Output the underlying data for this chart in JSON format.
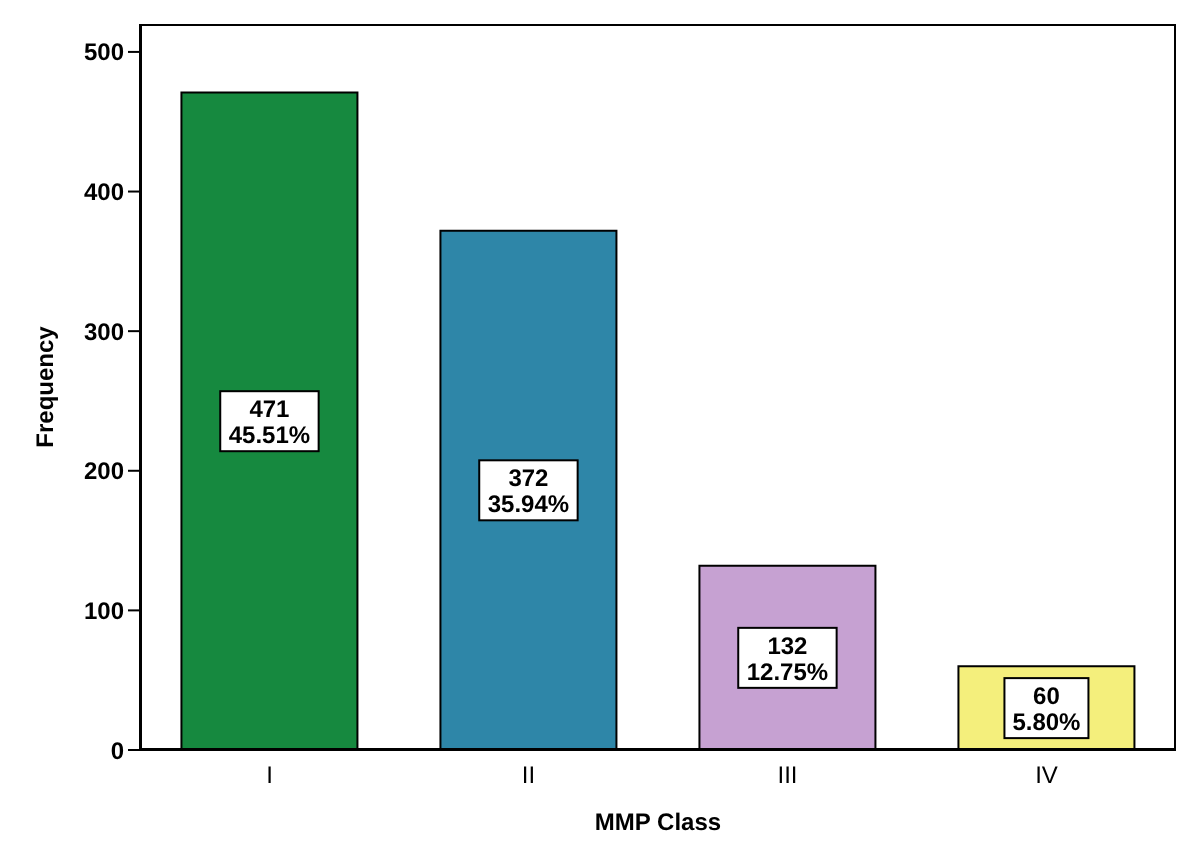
{
  "chart_data": {
    "type": "bar",
    "xlabel": "MMP Class",
    "ylabel": "Frequency",
    "categories": [
      "I",
      "II",
      "III",
      "IV"
    ],
    "values": [
      471,
      372,
      132,
      60
    ],
    "colors": [
      "#16893f",
      "#2e86a8",
      "#c6a1d2",
      "#f4ef7c"
    ],
    "value_labels": [
      "471\n45.51%",
      "372\n35.94%",
      "132\n12.75%",
      "60\n5.80%"
    ],
    "ylim": [
      0,
      520
    ],
    "yticks": [
      0,
      100,
      200,
      300,
      400,
      500
    ],
    "grid": false
  }
}
